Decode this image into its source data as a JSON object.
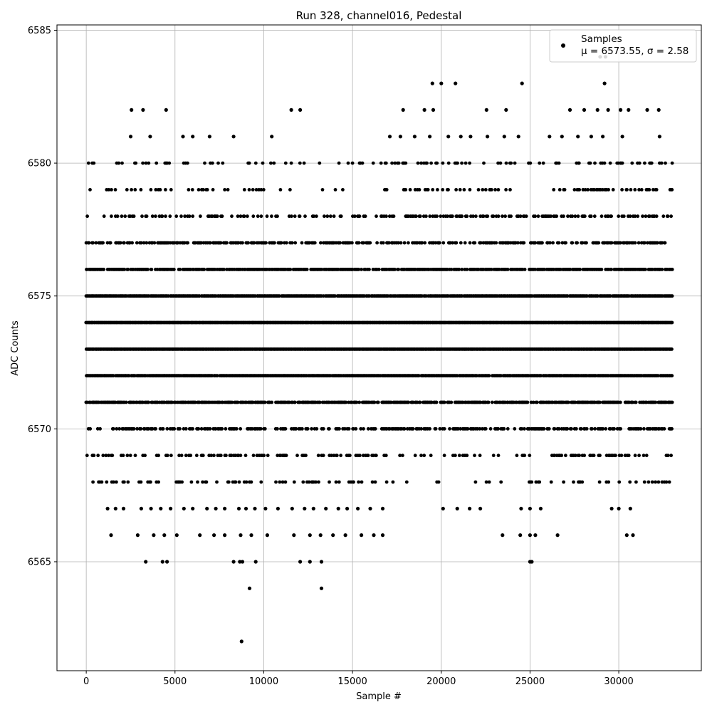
{
  "chart_data": {
    "type": "scatter",
    "title": "Run 328, channel016, Pedestal",
    "xlabel": "Sample #",
    "ylabel": "ADC Counts",
    "xlim": [
      -1650,
      34650
    ],
    "ylim": [
      6560.9,
      6585.2
    ],
    "xticks": [
      0,
      5000,
      10000,
      15000,
      20000,
      25000,
      30000
    ],
    "yticks": [
      6565,
      6570,
      6575,
      6580,
      6585
    ],
    "grid": true,
    "legend": {
      "placement": "top-right",
      "series_label": "Samples",
      "stats_label": "μ = 6573.55, σ = 2.58"
    },
    "series": [
      {
        "name": "Samples",
        "color": "#000000",
        "x_range": [
          0,
          33000
        ],
        "dense_levels": [
          6568,
          6569,
          6570,
          6571,
          6572,
          6573,
          6574,
          6575,
          6576,
          6577,
          6578,
          6579,
          6580
        ],
        "outliers": [
          {
            "x": 2550,
            "y": 6582
          },
          {
            "x": 3200,
            "y": 6582
          },
          {
            "x": 4500,
            "y": 6582
          },
          {
            "x": 11550,
            "y": 6582
          },
          {
            "x": 12050,
            "y": 6582
          },
          {
            "x": 17850,
            "y": 6582
          },
          {
            "x": 19050,
            "y": 6582
          },
          {
            "x": 19550,
            "y": 6582
          },
          {
            "x": 22550,
            "y": 6582
          },
          {
            "x": 23650,
            "y": 6582
          },
          {
            "x": 27250,
            "y": 6582
          },
          {
            "x": 28050,
            "y": 6582
          },
          {
            "x": 28800,
            "y": 6582
          },
          {
            "x": 29400,
            "y": 6582
          },
          {
            "x": 30100,
            "y": 6582
          },
          {
            "x": 30550,
            "y": 6582
          },
          {
            "x": 31600,
            "y": 6582
          },
          {
            "x": 32250,
            "y": 6582
          },
          {
            "x": 2500,
            "y": 6581
          },
          {
            "x": 3600,
            "y": 6581
          },
          {
            "x": 5450,
            "y": 6581
          },
          {
            "x": 6000,
            "y": 6581
          },
          {
            "x": 6950,
            "y": 6581
          },
          {
            "x": 8300,
            "y": 6581
          },
          {
            "x": 10450,
            "y": 6581
          },
          {
            "x": 17100,
            "y": 6581
          },
          {
            "x": 17700,
            "y": 6581
          },
          {
            "x": 18500,
            "y": 6581
          },
          {
            "x": 19350,
            "y": 6581
          },
          {
            "x": 20400,
            "y": 6581
          },
          {
            "x": 21100,
            "y": 6581
          },
          {
            "x": 21650,
            "y": 6581
          },
          {
            "x": 22600,
            "y": 6581
          },
          {
            "x": 23550,
            "y": 6581
          },
          {
            "x": 24350,
            "y": 6581
          },
          {
            "x": 26100,
            "y": 6581
          },
          {
            "x": 26800,
            "y": 6581
          },
          {
            "x": 27700,
            "y": 6581
          },
          {
            "x": 28450,
            "y": 6581
          },
          {
            "x": 29100,
            "y": 6581
          },
          {
            "x": 30200,
            "y": 6581
          },
          {
            "x": 32300,
            "y": 6581
          },
          {
            "x": 19500,
            "y": 6583
          },
          {
            "x": 20000,
            "y": 6583
          },
          {
            "x": 20800,
            "y": 6583
          },
          {
            "x": 24550,
            "y": 6583
          },
          {
            "x": 29200,
            "y": 6583
          },
          {
            "x": 28950,
            "y": 6584
          },
          {
            "x": 29250,
            "y": 6584
          },
          {
            "x": 1200,
            "y": 6567
          },
          {
            "x": 1650,
            "y": 6567
          },
          {
            "x": 2100,
            "y": 6567
          },
          {
            "x": 3100,
            "y": 6567
          },
          {
            "x": 3650,
            "y": 6567
          },
          {
            "x": 4200,
            "y": 6567
          },
          {
            "x": 4750,
            "y": 6567
          },
          {
            "x": 5500,
            "y": 6567
          },
          {
            "x": 6000,
            "y": 6567
          },
          {
            "x": 6800,
            "y": 6567
          },
          {
            "x": 7300,
            "y": 6567
          },
          {
            "x": 7800,
            "y": 6567
          },
          {
            "x": 8600,
            "y": 6567
          },
          {
            "x": 9000,
            "y": 6567
          },
          {
            "x": 9500,
            "y": 6567
          },
          {
            "x": 10100,
            "y": 6567
          },
          {
            "x": 10800,
            "y": 6567
          },
          {
            "x": 11600,
            "y": 6567
          },
          {
            "x": 12300,
            "y": 6567
          },
          {
            "x": 12800,
            "y": 6567
          },
          {
            "x": 13500,
            "y": 6567
          },
          {
            "x": 14200,
            "y": 6567
          },
          {
            "x": 14700,
            "y": 6567
          },
          {
            "x": 15300,
            "y": 6567
          },
          {
            "x": 16000,
            "y": 6567
          },
          {
            "x": 16700,
            "y": 6567
          },
          {
            "x": 20100,
            "y": 6567
          },
          {
            "x": 20900,
            "y": 6567
          },
          {
            "x": 21600,
            "y": 6567
          },
          {
            "x": 22200,
            "y": 6567
          },
          {
            "x": 24500,
            "y": 6567
          },
          {
            "x": 25000,
            "y": 6567
          },
          {
            "x": 25600,
            "y": 6567
          },
          {
            "x": 29600,
            "y": 6567
          },
          {
            "x": 30000,
            "y": 6567
          },
          {
            "x": 30650,
            "y": 6567
          },
          {
            "x": 1400,
            "y": 6566
          },
          {
            "x": 2900,
            "y": 6566
          },
          {
            "x": 3800,
            "y": 6566
          },
          {
            "x": 4400,
            "y": 6566
          },
          {
            "x": 5100,
            "y": 6566
          },
          {
            "x": 6400,
            "y": 6566
          },
          {
            "x": 7200,
            "y": 6566
          },
          {
            "x": 7800,
            "y": 6566
          },
          {
            "x": 8700,
            "y": 6566
          },
          {
            "x": 9300,
            "y": 6566
          },
          {
            "x": 10200,
            "y": 6566
          },
          {
            "x": 11700,
            "y": 6566
          },
          {
            "x": 12600,
            "y": 6566
          },
          {
            "x": 13200,
            "y": 6566
          },
          {
            "x": 13900,
            "y": 6566
          },
          {
            "x": 14600,
            "y": 6566
          },
          {
            "x": 15500,
            "y": 6566
          },
          {
            "x": 16200,
            "y": 6566
          },
          {
            "x": 16700,
            "y": 6566
          },
          {
            "x": 23450,
            "y": 6566
          },
          {
            "x": 24450,
            "y": 6566
          },
          {
            "x": 25000,
            "y": 6566
          },
          {
            "x": 25300,
            "y": 6566
          },
          {
            "x": 26550,
            "y": 6566
          },
          {
            "x": 30450,
            "y": 6566
          },
          {
            "x": 30800,
            "y": 6566
          },
          {
            "x": 3350,
            "y": 6565
          },
          {
            "x": 4300,
            "y": 6565
          },
          {
            "x": 4550,
            "y": 6565
          },
          {
            "x": 8300,
            "y": 6565
          },
          {
            "x": 8650,
            "y": 6565
          },
          {
            "x": 8800,
            "y": 6565
          },
          {
            "x": 9550,
            "y": 6565
          },
          {
            "x": 12050,
            "y": 6565
          },
          {
            "x": 12600,
            "y": 6565
          },
          {
            "x": 13250,
            "y": 6565
          },
          {
            "x": 25000,
            "y": 6565
          },
          {
            "x": 25100,
            "y": 6565
          },
          {
            "x": 9200,
            "y": 6564
          },
          {
            "x": 13250,
            "y": 6564
          },
          {
            "x": 8750,
            "y": 6562
          }
        ]
      }
    ]
  }
}
